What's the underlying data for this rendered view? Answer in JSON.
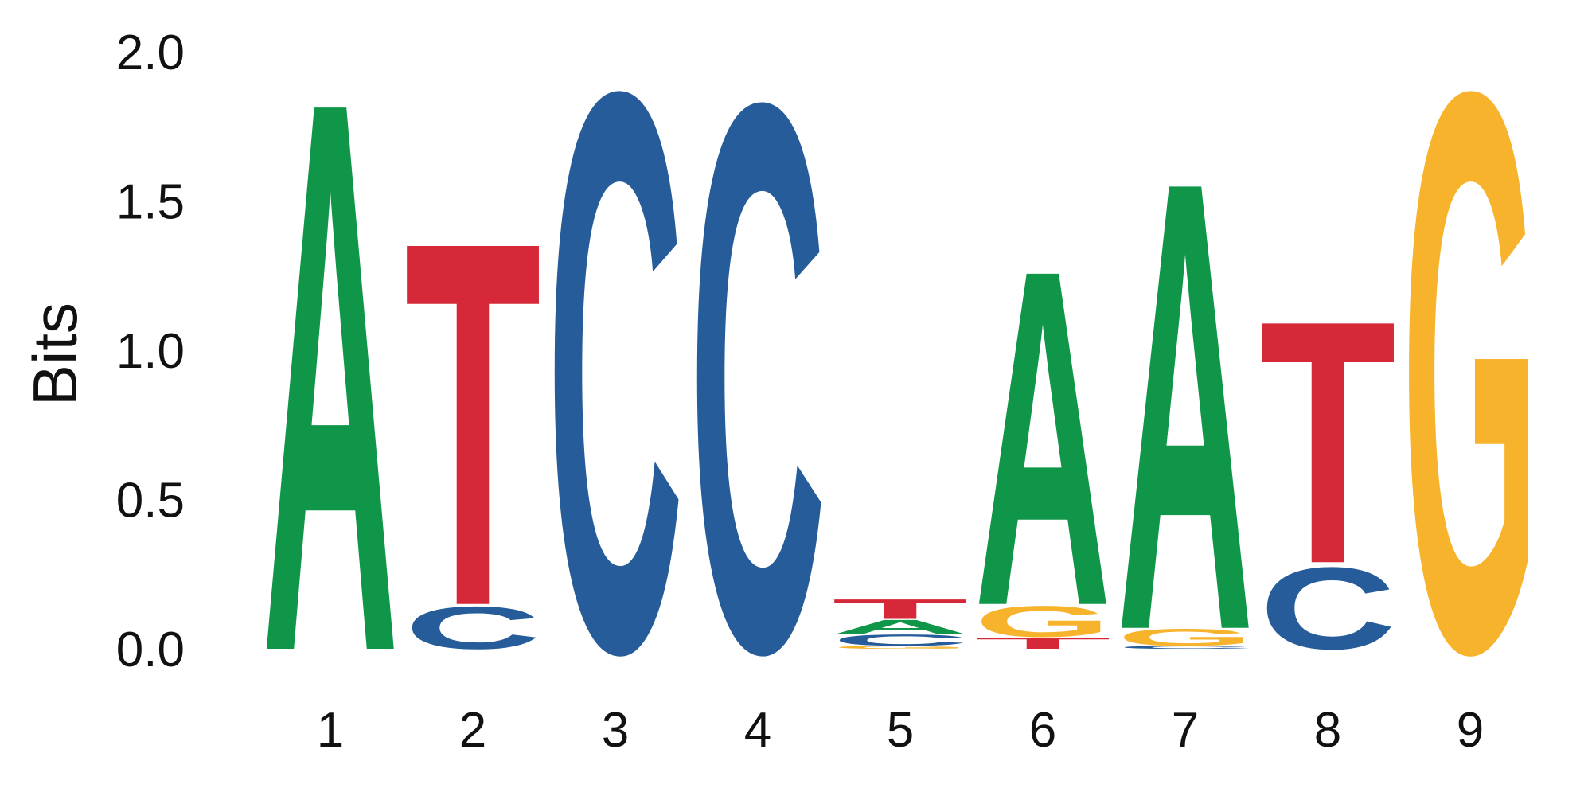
{
  "chart_data": {
    "type": "sequence-logo",
    "ylabel": "Bits",
    "ylim": [
      0,
      2.0
    ],
    "y_ticks": [
      "0.0",
      "0.5",
      "1.0",
      "1.5",
      "2.0"
    ],
    "y_tick_values": [
      0,
      0.5,
      1.0,
      1.5,
      2.0
    ],
    "colors": {
      "A": "#109648",
      "C": "#255C99",
      "G": "#F7B32B",
      "T": "#D62839"
    },
    "positions": [
      {
        "label": "1",
        "stack": [
          {
            "base": "A",
            "bits": 1.95
          }
        ]
      },
      {
        "label": "2",
        "stack": [
          {
            "base": "C",
            "bits": 0.15
          },
          {
            "base": "T",
            "bits": 1.29
          }
        ]
      },
      {
        "label": "3",
        "stack": [
          {
            "base": "C",
            "bits": 1.98
          }
        ]
      },
      {
        "label": "4",
        "stack": [
          {
            "base": "C",
            "bits": 1.94
          }
        ]
      },
      {
        "label": "5",
        "stack": [
          {
            "base": "G",
            "bits": 0.01
          },
          {
            "base": "C",
            "bits": 0.04
          },
          {
            "base": "A",
            "bits": 0.05
          },
          {
            "base": "T",
            "bits": 0.07
          }
        ]
      },
      {
        "label": "6",
        "stack": [
          {
            "base": "T",
            "bits": 0.04
          },
          {
            "base": "G",
            "bits": 0.11
          },
          {
            "base": "A",
            "bits": 1.19
          }
        ]
      },
      {
        "label": "7",
        "stack": [
          {
            "base": "C",
            "bits": 0.01
          },
          {
            "base": "G",
            "bits": 0.06
          },
          {
            "base": "A",
            "bits": 1.59
          }
        ]
      },
      {
        "label": "8",
        "stack": [
          {
            "base": "C",
            "bits": 0.29
          },
          {
            "base": "T",
            "bits": 0.86
          }
        ]
      },
      {
        "label": "9",
        "stack": [
          {
            "base": "G",
            "bits": 1.98
          }
        ]
      }
    ]
  }
}
